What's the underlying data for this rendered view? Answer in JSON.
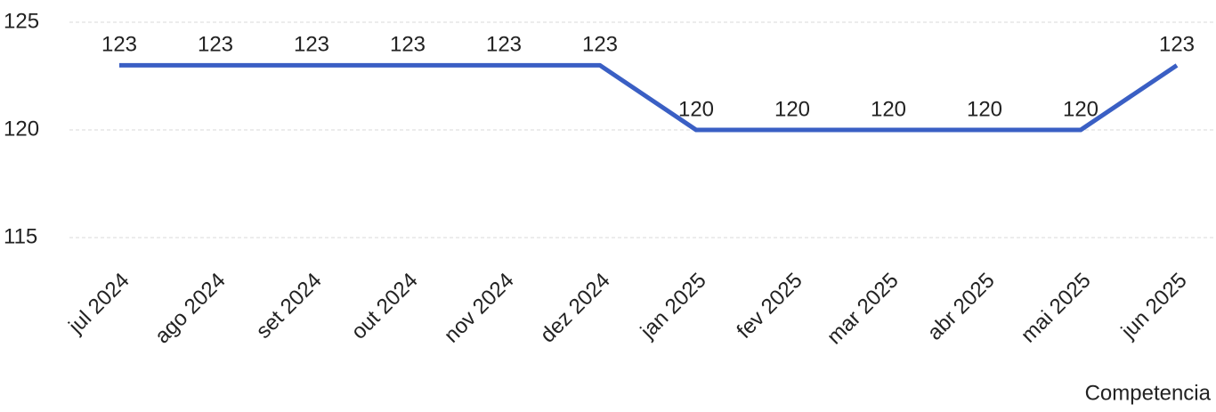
{
  "chart_data": {
    "type": "line",
    "x_label": "Competencia",
    "categories": [
      "jul 2024",
      "ago 2024",
      "set 2024",
      "out 2024",
      "nov 2024",
      "dez 2024",
      "jan 2025",
      "fev 2025",
      "mar 2025",
      "abr 2025",
      "mai 2025",
      "jun 2025"
    ],
    "series": [
      {
        "name": "Competencia",
        "color": "#3a5fc4",
        "values": [
          123,
          123,
          123,
          123,
          123,
          123,
          120,
          120,
          120,
          120,
          120,
          123
        ]
      }
    ],
    "ylim": [
      115,
      125
    ],
    "yticks": [
      115,
      120,
      125
    ],
    "grid": true
  }
}
